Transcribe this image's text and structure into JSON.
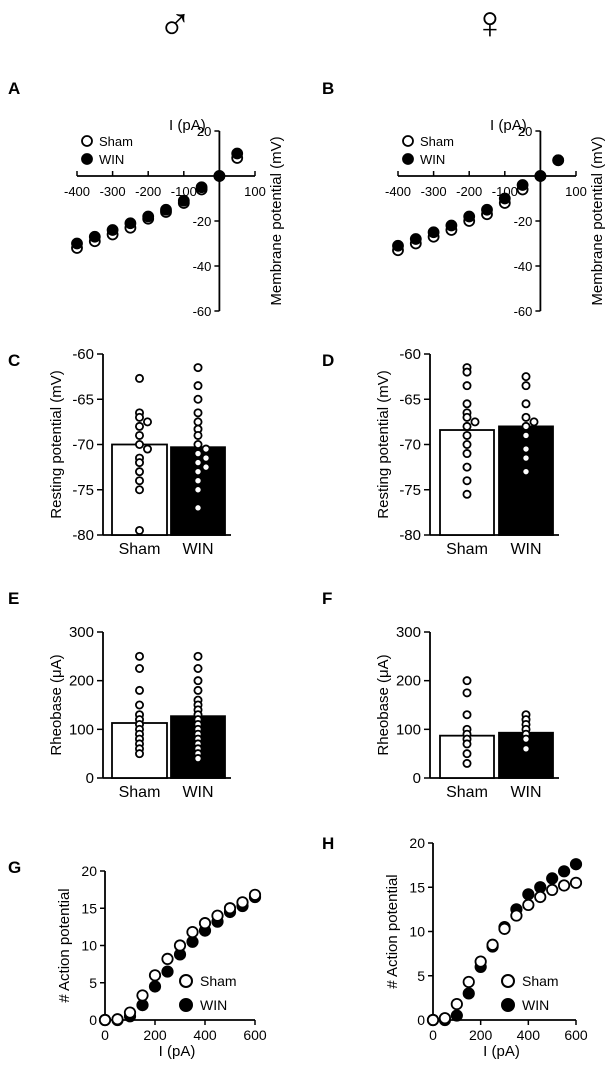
{
  "header": {
    "male_symbol": "♂",
    "female_symbol": "♀"
  },
  "chart_data": [
    {
      "panel": "A",
      "type": "scatter",
      "sex": "male",
      "xlabel": "I (pA)",
      "ylabel": "Membrane potential (mV)",
      "xlim": [
        -400,
        100
      ],
      "ylim": [
        -60,
        20
      ],
      "xticks": [
        -400,
        -300,
        -200,
        -100,
        100
      ],
      "yticks": [
        20,
        -20,
        -40,
        -60
      ],
      "legend": [
        "Sham",
        "WIN"
      ],
      "series": [
        {
          "name": "Sham",
          "x": [
            -400,
            -350,
            -300,
            -250,
            -200,
            -150,
            -100,
            -50,
            0,
            50
          ],
          "y": [
            -32,
            -29,
            -26,
            -23,
            -19,
            -16,
            -12,
            -6,
            0,
            8
          ]
        },
        {
          "name": "WIN",
          "x": [
            -400,
            -350,
            -300,
            -250,
            -200,
            -150,
            -100,
            -50,
            0,
            50
          ],
          "y": [
            -30,
            -27,
            -24,
            -21,
            -18,
            -15,
            -11,
            -5,
            0,
            10
          ]
        }
      ]
    },
    {
      "panel": "B",
      "type": "scatter",
      "sex": "female",
      "xlabel": "I (pA)",
      "ylabel": "Membrane potential (mV)",
      "xlim": [
        -400,
        100
      ],
      "ylim": [
        -60,
        20
      ],
      "xticks": [
        -400,
        -300,
        -200,
        -100,
        100
      ],
      "yticks": [
        20,
        -20,
        -40,
        -60
      ],
      "legend": [
        "Sham",
        "WIN"
      ],
      "series": [
        {
          "name": "Sham",
          "x": [
            -400,
            -350,
            -300,
            -250,
            -200,
            -150,
            -100,
            -50,
            0,
            50
          ],
          "y": [
            -33,
            -30,
            -27,
            -24,
            -20,
            -17,
            -12,
            -6,
            0,
            7
          ]
        },
        {
          "name": "WIN",
          "x": [
            -400,
            -350,
            -300,
            -250,
            -200,
            -150,
            -100,
            -50,
            0,
            50
          ],
          "y": [
            -31,
            -28,
            -25,
            -22,
            -18,
            -15,
            -10,
            -4,
            0,
            7
          ]
        }
      ]
    },
    {
      "panel": "C",
      "type": "bar",
      "sex": "male",
      "ylabel": "Resting potential (mV)",
      "ylim": [
        -80,
        -60
      ],
      "yticks": [
        -60,
        -65,
        -70,
        -75,
        -80
      ],
      "categories": [
        "Sham",
        "WIN"
      ],
      "values": [
        -70,
        -70.3
      ],
      "points": [
        [
          -62.7,
          -66.5,
          -67,
          -67.5,
          -68,
          -69,
          -70,
          -70.5,
          -71.5,
          -72,
          -73,
          -74,
          -75,
          -79.5
        ],
        [
          -61.5,
          -63.5,
          -65,
          -66.5,
          -67.5,
          -68.3,
          -69,
          -70,
          -70.5,
          -71,
          -71.5,
          -72,
          -72.5,
          -73,
          -74,
          -75,
          -77
        ]
      ]
    },
    {
      "panel": "D",
      "type": "bar",
      "sex": "female",
      "ylabel": "Resting potential (mV)",
      "ylim": [
        -80,
        -60
      ],
      "yticks": [
        -60,
        -65,
        -70,
        -75,
        -80
      ],
      "categories": [
        "Sham",
        "WIN"
      ],
      "values": [
        -68.4,
        -68
      ],
      "points": [
        [
          -61.5,
          -62,
          -63.5,
          -65.5,
          -66.5,
          -67,
          -67.5,
          -68,
          -69,
          -70,
          -71,
          -72.5,
          -74,
          -75.5
        ],
        [
          -62.5,
          -63.5,
          -65.5,
          -67,
          -67.5,
          -68,
          -69,
          -70.5,
          -71.5,
          -73
        ]
      ]
    },
    {
      "panel": "E",
      "type": "bar",
      "sex": "male",
      "ylabel": "Rheobase (μA)",
      "ylim": [
        0,
        300
      ],
      "yticks": [
        0,
        100,
        200,
        300
      ],
      "categories": [
        "Sham",
        "WIN"
      ],
      "values": [
        113,
        127
      ],
      "points": [
        [
          250,
          225,
          180,
          150,
          130,
          120,
          110,
          100,
          90,
          80,
          70,
          60,
          50
        ],
        [
          250,
          225,
          200,
          180,
          160,
          150,
          140,
          130,
          120,
          110,
          100,
          90,
          80,
          70,
          60,
          50,
          40
        ]
      ]
    },
    {
      "panel": "F",
      "type": "bar",
      "sex": "female",
      "ylabel": "Rheobase (μA)",
      "ylim": [
        0,
        300
      ],
      "yticks": [
        0,
        100,
        200,
        300
      ],
      "categories": [
        "Sham",
        "WIN"
      ],
      "values": [
        87,
        93
      ],
      "points": [
        [
          200,
          175,
          130,
          100,
          90,
          80,
          70,
          50,
          30
        ],
        [
          130,
          120,
          110,
          100,
          90,
          80,
          60
        ]
      ]
    },
    {
      "panel": "G",
      "type": "scatter",
      "sex": "male",
      "xlabel": "I (pA)",
      "ylabel": "# Action potential",
      "xlim": [
        0,
        600
      ],
      "ylim": [
        0,
        20
      ],
      "xticks": [
        0,
        200,
        400,
        600
      ],
      "yticks": [
        0,
        5,
        10,
        15,
        20
      ],
      "legend": [
        "Sham",
        "WIN"
      ],
      "series": [
        {
          "name": "Sham",
          "x": [
            0,
            50,
            100,
            150,
            200,
            250,
            300,
            350,
            400,
            450,
            500,
            550,
            600
          ],
          "y": [
            0,
            0.1,
            1,
            3.3,
            6,
            8.2,
            10,
            11.8,
            13,
            14,
            15,
            15.8,
            16.8
          ]
        },
        {
          "name": "WIN",
          "x": [
            0,
            50,
            100,
            150,
            200,
            250,
            300,
            350,
            400,
            450,
            500,
            550,
            600
          ],
          "y": [
            0,
            0,
            0.5,
            2,
            4.5,
            6.5,
            8.8,
            10.5,
            12,
            13.2,
            14.5,
            15.3,
            16.5
          ]
        }
      ]
    },
    {
      "panel": "H",
      "type": "scatter",
      "sex": "female",
      "xlabel": "I (pA)",
      "ylabel": "# Action potential",
      "xlim": [
        0,
        600
      ],
      "ylim": [
        0,
        20
      ],
      "xticks": [
        0,
        200,
        400,
        600
      ],
      "yticks": [
        0,
        5,
        10,
        15,
        20
      ],
      "legend": [
        "Sham",
        "WIN"
      ],
      "series": [
        {
          "name": "Sham",
          "x": [
            0,
            50,
            100,
            150,
            200,
            250,
            300,
            350,
            400,
            450,
            500,
            550,
            600
          ],
          "y": [
            0,
            0.2,
            1.8,
            4.3,
            6.6,
            8.5,
            10.3,
            11.8,
            13,
            13.9,
            14.7,
            15.2,
            15.5
          ]
        },
        {
          "name": "WIN",
          "x": [
            0,
            50,
            100,
            150,
            200,
            250,
            300,
            350,
            400,
            450,
            500,
            550,
            600
          ],
          "y": [
            0,
            0,
            0.5,
            3,
            6,
            8.3,
            10.5,
            12.5,
            14.2,
            15,
            16,
            16.8,
            17.6
          ]
        }
      ]
    }
  ]
}
